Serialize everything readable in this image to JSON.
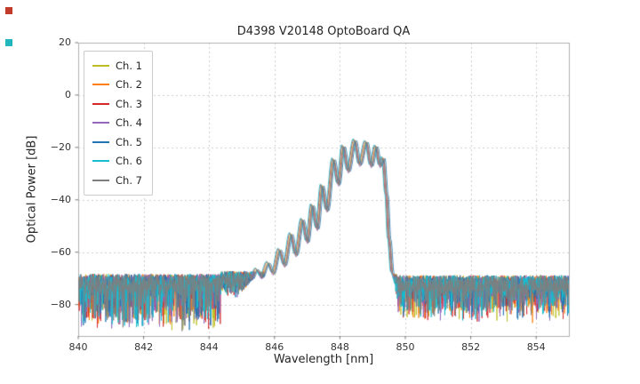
{
  "markers": {
    "top_left_color": "#c23b2b",
    "lower_left_color": "#1fb7bd"
  },
  "chart_data": {
    "type": "line",
    "title": "D4398 V20148 OptoBoard QA",
    "xlabel": "Wavelength [nm]",
    "ylabel": "Optical Power [dB]",
    "xlim": [
      840,
      855
    ],
    "ylim": [
      -92,
      20
    ],
    "xticks": [
      840,
      842,
      844,
      846,
      848,
      850,
      852,
      854
    ],
    "yticks": [
      20,
      0,
      -20,
      -40,
      -60,
      -80
    ],
    "ytick_labels": [
      "20",
      "0",
      "−20",
      "−40",
      "−60",
      "−80"
    ],
    "grid": true,
    "grid_color": "#cccccc",
    "legend_position": "upper left",
    "series": [
      {
        "name": "Ch. 1",
        "color": "#bcbd22",
        "dx": 0.0,
        "dy": 0.0,
        "seed": 11
      },
      {
        "name": "Ch. 2",
        "color": "#ff7f0e",
        "dx": 0.025,
        "dy": -0.4,
        "seed": 22
      },
      {
        "name": "Ch. 3",
        "color": "#d62728",
        "dx": -0.03,
        "dy": 0.3,
        "seed": 33
      },
      {
        "name": "Ch. 4",
        "color": "#9467bd",
        "dx": 0.01,
        "dy": -0.8,
        "seed": 44
      },
      {
        "name": "Ch. 5",
        "color": "#1f77b4",
        "dx": 0.06,
        "dy": -0.2,
        "seed": 55
      },
      {
        "name": "Ch. 6",
        "color": "#17becf",
        "dx": -0.05,
        "dy": 0.5,
        "seed": 66
      },
      {
        "name": "Ch. 7",
        "color": "#7f7f7f",
        "dx": 0.02,
        "dy": -0.3,
        "seed": 77
      }
    ],
    "profile": [
      [
        845.0,
        -74.0
      ],
      [
        845.3,
        -70.0
      ],
      [
        845.45,
        -66.5
      ],
      [
        845.6,
        -69.5
      ],
      [
        845.8,
        -64.0
      ],
      [
        845.95,
        -68.0
      ],
      [
        846.15,
        -59.0
      ],
      [
        846.3,
        -65.0
      ],
      [
        846.5,
        -53.0
      ],
      [
        846.65,
        -61.0
      ],
      [
        846.85,
        -47.5
      ],
      [
        847.0,
        -56.0
      ],
      [
        847.15,
        -42.0
      ],
      [
        847.3,
        -51.0
      ],
      [
        847.45,
        -34.5
      ],
      [
        847.6,
        -44.0
      ],
      [
        847.8,
        -24.5
      ],
      [
        847.95,
        -34.0
      ],
      [
        848.1,
        -19.5
      ],
      [
        848.25,
        -29.0
      ],
      [
        848.45,
        -17.2
      ],
      [
        848.6,
        -26.5
      ],
      [
        848.8,
        -17.8
      ],
      [
        848.95,
        -27.0
      ],
      [
        849.1,
        -19.5
      ],
      [
        849.22,
        -27.0
      ],
      [
        849.32,
        -24.0
      ],
      [
        849.42,
        -38.0
      ],
      [
        849.5,
        -55.0
      ],
      [
        849.6,
        -68.0
      ],
      [
        849.75,
        -73.0
      ]
    ],
    "noise_regions": [
      {
        "x0": 840.0,
        "x1": 844.35,
        "center": -71.5,
        "spread": 3.2,
        "spike": 16
      },
      {
        "x0": 844.35,
        "x1": 845.8,
        "center": -70.0,
        "spread": 2.8,
        "spike": 5
      },
      {
        "x0": 845.8,
        "x1": 849.75,
        "center": -71.0,
        "spread": 2.8,
        "spike": 6
      },
      {
        "x0": 849.75,
        "x1": 855.05,
        "center": -72.0,
        "spread": 3.2,
        "spike": 12
      }
    ]
  }
}
